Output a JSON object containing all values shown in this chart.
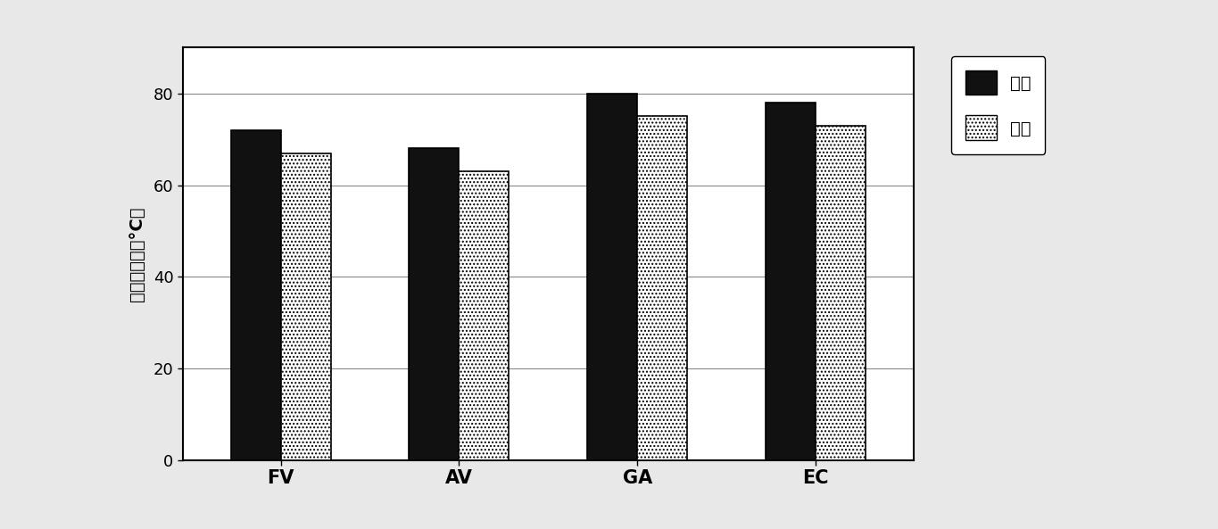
{
  "categories": [
    "FV",
    "AV",
    "GA",
    "EC"
  ],
  "series": {
    "瓣叶": [
      72,
      68,
      80,
      78
    ],
    "管壁": [
      67,
      63,
      75,
      73
    ]
  },
  "ylabel": "热皱缩温度（°C）",
  "ylim": [
    0,
    90
  ],
  "yticks": [
    0,
    20,
    40,
    60,
    80
  ],
  "legend_labels": [
    "瓣叶",
    "管壁"
  ],
  "axis_fontsize": 14,
  "tick_fontsize": 13,
  "bar_width": 0.28,
  "background_color": "#f0f0f0",
  "plot_bg_color": "#ffffff",
  "grid_color": "#888888"
}
